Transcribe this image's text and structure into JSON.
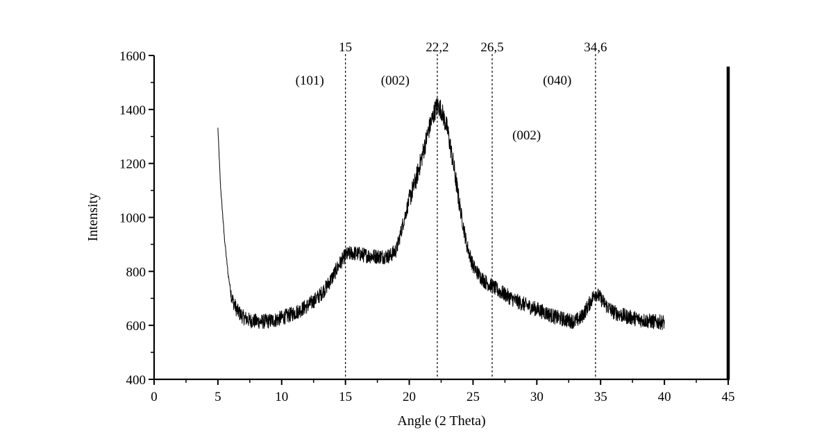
{
  "chart_data": {
    "type": "line",
    "title": "",
    "xlabel": "Angle (2 Theta)",
    "ylabel": "Intensity",
    "xlim": [
      0,
      45
    ],
    "ylim": [
      400,
      1600
    ],
    "x_ticks": [
      "0",
      "5",
      "10",
      "15",
      "20",
      "25",
      "30",
      "35",
      "40",
      "45"
    ],
    "y_ticks": [
      "400",
      "600",
      "800",
      "1000",
      "1200",
      "1400",
      "1600"
    ],
    "grid": false,
    "legend": "none",
    "line_color": "#000000",
    "series": [
      {
        "x": [
          5,
          5.2,
          5.5,
          5.8,
          6.1,
          6.5,
          7,
          7.5,
          8,
          8.5,
          9,
          9.5,
          10,
          10.5,
          11,
          11.5,
          12,
          12.5,
          13,
          13.5,
          14,
          14.5,
          15,
          15.5,
          16,
          16.5,
          17,
          17.5,
          18,
          18.5,
          19,
          19.5,
          20,
          20.5,
          21,
          21.5,
          22,
          22.2,
          22.5,
          23,
          23.5,
          24,
          24.5,
          25,
          25.5,
          26,
          26.5,
          27,
          27.5,
          28,
          28.5,
          29,
          29.5,
          30,
          30.5,
          31,
          31.5,
          32,
          32.5,
          33,
          33.5,
          34,
          34.6,
          35,
          35.5,
          36,
          36.5,
          37,
          37.5,
          38,
          38.5,
          39,
          39.5,
          40
        ],
        "values": [
          1330,
          1120,
          930,
          790,
          700,
          655,
          630,
          618,
          615,
          614,
          616,
          620,
          628,
          636,
          646,
          658,
          672,
          690,
          712,
          742,
          780,
          825,
          860,
          868,
          865,
          860,
          857,
          856,
          855,
          858,
          880,
          975,
          1065,
          1135,
          1225,
          1320,
          1395,
          1415,
          1400,
          1325,
          1185,
          1030,
          900,
          820,
          785,
          760,
          745,
          728,
          715,
          700,
          688,
          678,
          668,
          660,
          650,
          640,
          630,
          624,
          618,
          615,
          630,
          670,
          722,
          700,
          670,
          650,
          640,
          633,
          628,
          622,
          618,
          615,
          612,
          612
        ]
      }
    ],
    "reference_lines": [
      {
        "x": 15,
        "label": "15"
      },
      {
        "x": 22.2,
        "label": "22,2"
      },
      {
        "x": 26.5,
        "label": "26,5"
      },
      {
        "x": 34.6,
        "label": "34,6"
      }
    ],
    "annotations": [
      {
        "text": "(101)",
        "x": 12.2,
        "y": 1510
      },
      {
        "text": "(002)",
        "x": 18.9,
        "y": 1510
      },
      {
        "text": "(040)",
        "x": 31.6,
        "y": 1510
      },
      {
        "text": "(002)",
        "x": 29.2,
        "y": 1307
      }
    ]
  }
}
